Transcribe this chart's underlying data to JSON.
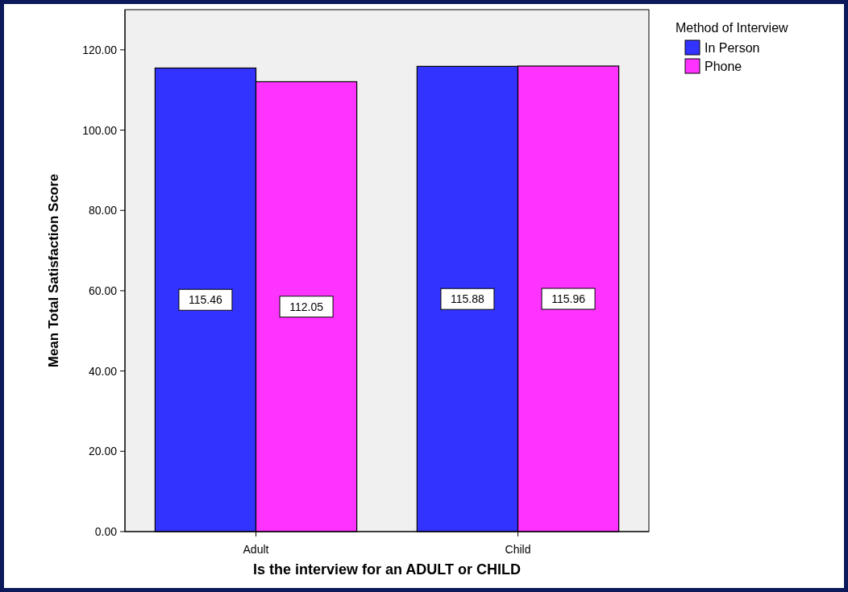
{
  "chart_data": {
    "type": "bar",
    "xlabel": "Is the interview for an ADULT or CHILD",
    "ylabel": "Mean Total Satisfaction Score",
    "legend_title": "Method of Interview",
    "categories": [
      "Adult",
      "Child"
    ],
    "series": [
      {
        "name": "In Person",
        "color": "#3333ff",
        "values": [
          115.46,
          115.88
        ]
      },
      {
        "name": "Phone",
        "color": "#ff33ff",
        "values": [
          112.05,
          115.96
        ]
      }
    ],
    "ylim": [
      0,
      130
    ],
    "yticks": [
      {
        "value": 0,
        "label": "0.00"
      },
      {
        "value": 20,
        "label": "20.00"
      },
      {
        "value": 40,
        "label": "40.00"
      },
      {
        "value": 60,
        "label": "60.00"
      },
      {
        "value": 80,
        "label": "80.00"
      },
      {
        "value": 100,
        "label": "100.00"
      },
      {
        "value": 120,
        "label": "120.00"
      }
    ],
    "data_labels": true,
    "legend": "top right",
    "grid": false
  }
}
